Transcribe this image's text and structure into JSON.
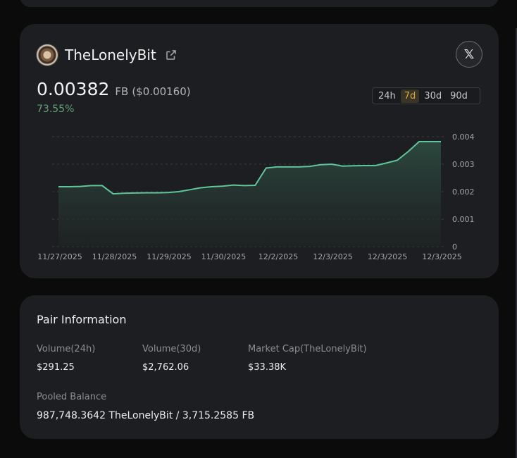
{
  "token": {
    "name": "TheLonelyBit",
    "price": "0.00382",
    "pair_unit": "FB",
    "usd_price": "($0.00160)",
    "change": "73.55%",
    "x_label": "𝕏"
  },
  "timeframes": {
    "items": [
      "24h",
      "7d",
      "30d",
      "90d"
    ],
    "selected": "7d"
  },
  "chart_data": {
    "type": "area",
    "x_tick_labels": [
      "11/27/2025",
      "11/28/2025",
      "11/29/2025",
      "11/30/2025",
      "12/2/2025",
      "12/3/2025",
      "12/3/2025",
      "12/3/2025"
    ],
    "y_tick_labels": [
      "0.004",
      "0.003",
      "0.002",
      "0.001",
      "0"
    ],
    "ylim": [
      0,
      0.004
    ],
    "grid": true,
    "values": [
      0.00218,
      0.00218,
      0.00219,
      0.00222,
      0.00222,
      0.00192,
      0.00194,
      0.00195,
      0.00196,
      0.00196,
      0.00197,
      0.002,
      0.00207,
      0.00214,
      0.00218,
      0.0022,
      0.00224,
      0.00222,
      0.00223,
      0.00286,
      0.0029,
      0.0029,
      0.0029,
      0.00292,
      0.00298,
      0.003,
      0.00293,
      0.00294,
      0.00295,
      0.00295,
      0.00304,
      0.00314,
      0.00346,
      0.00382,
      0.00382,
      0.00382
    ],
    "line_color": "#5fc59a",
    "fill_color": "#2d4a40"
  },
  "pair_info": {
    "title": "Pair Information",
    "metrics": [
      {
        "label": "Volume(24h)",
        "value": "$291.25"
      },
      {
        "label": "Volume(30d)",
        "value": "$2,762.06"
      },
      {
        "label": "Market Cap(TheLonelyBit)",
        "value": "$33.38K"
      }
    ],
    "pooled_label": "Pooled Balance",
    "pooled_value": "987,748.3642 TheLonelyBit / 3,715.2585 FB"
  }
}
